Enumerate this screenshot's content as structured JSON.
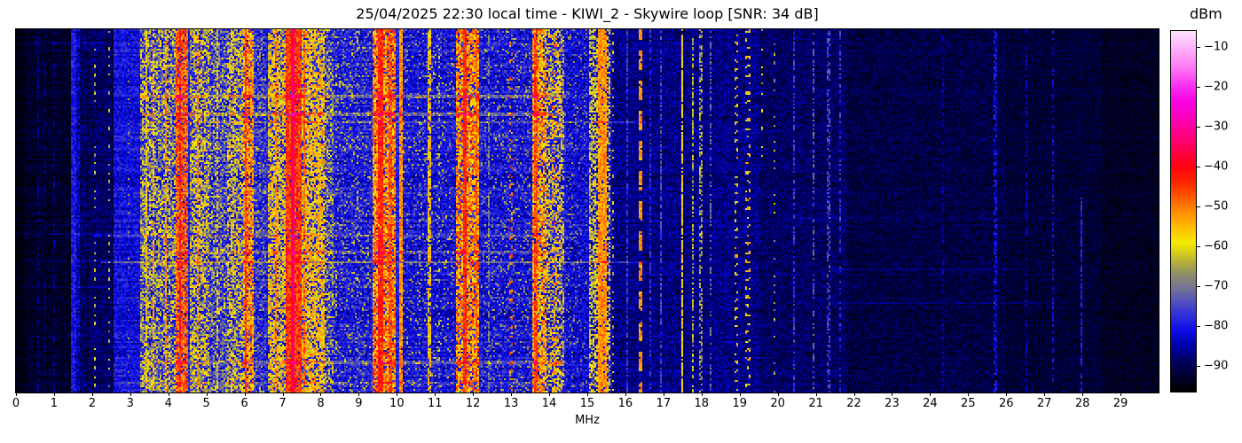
{
  "title": "25/04/2025 22:30 local time - KIWI_2 - Skywire loop [SNR: 34 dB]",
  "x_axis": {
    "label": "MHz",
    "ticks": [
      0,
      1,
      2,
      3,
      4,
      5,
      6,
      7,
      8,
      9,
      10,
      11,
      12,
      13,
      14,
      15,
      16,
      17,
      18,
      19,
      20,
      21,
      22,
      23,
      24,
      25,
      26,
      27,
      28,
      29
    ]
  },
  "colorbar": {
    "label": "dBm",
    "ticks": [
      {
        "v": -10,
        "label": "−10"
      },
      {
        "v": -20,
        "label": "−20"
      },
      {
        "v": -30,
        "label": "−30"
      },
      {
        "v": -40,
        "label": "−40"
      },
      {
        "v": -50,
        "label": "−50"
      },
      {
        "v": -60,
        "label": "−60"
      },
      {
        "v": -70,
        "label": "−70"
      },
      {
        "v": -80,
        "label": "−80"
      },
      {
        "v": -90,
        "label": "−90"
      }
    ]
  },
  "chart_data": {
    "type": "heatmap",
    "subtype": "hf-spectrogram-waterfall",
    "title": "25/04/2025 22:30 local time - KIWI_2 - Skywire loop [SNR: 34 dB]",
    "date_local": "25/04/2025",
    "time_local": "22:30",
    "receiver": "KIWI_2",
    "antenna": "Skywire loop",
    "snr_db": 34,
    "xlabel": "MHz",
    "x_range": [
      0,
      30
    ],
    "y_axis": "time (rows top to bottom, no tick labels shown)",
    "legend_position": "colorbar right",
    "grid": false,
    "color_scale": {
      "label": "dBm",
      "range": [
        -96.5,
        -6
      ],
      "ticks": [
        -10,
        -20,
        -30,
        -40,
        -50,
        -60,
        -70,
        -80,
        -90
      ],
      "stops": [
        [
          -97,
          "#000000"
        ],
        [
          -93,
          "#000028"
        ],
        [
          -89,
          "#00005e"
        ],
        [
          -85,
          "#0000a8"
        ],
        [
          -81,
          "#0d0de8"
        ],
        [
          -77,
          "#3232d8"
        ],
        [
          -73,
          "#5a5ab4"
        ],
        [
          -70,
          "#78788c"
        ],
        [
          -67,
          "#8f8f6a"
        ],
        [
          -64,
          "#b5ae3c"
        ],
        [
          -61,
          "#e0d414"
        ],
        [
          -59,
          "#f5e900"
        ],
        [
          -56,
          "#ffc400"
        ],
        [
          -52,
          "#ff9300"
        ],
        [
          -48,
          "#ff5d00"
        ],
        [
          -44,
          "#ff2600"
        ],
        [
          -40,
          "#ff0011"
        ],
        [
          -36,
          "#ff004d"
        ],
        [
          -32,
          "#ff0084"
        ],
        [
          -28,
          "#fb00b8"
        ],
        [
          -24,
          "#f900e2"
        ],
        [
          -20,
          "#fb2bee"
        ],
        [
          -15,
          "#fd7df5"
        ],
        [
          -10,
          "#feb5fa"
        ],
        [
          -6,
          "#ffe3fd"
        ]
      ]
    },
    "background_profile_fields": "[fMHz_start, fMHz_end, base_dBm, noise_dB]",
    "background_profile": [
      [
        0,
        0.25,
        -95,
        2
      ],
      [
        0.25,
        1.44,
        -93,
        3
      ],
      [
        1.44,
        1.62,
        -84,
        4
      ],
      [
        1.62,
        2.55,
        -89,
        4
      ],
      [
        2.55,
        3.25,
        -81,
        4
      ],
      [
        3.25,
        8.35,
        -79,
        5
      ],
      [
        8.35,
        9.3,
        -80,
        5
      ],
      [
        9.3,
        10.05,
        -79,
        5
      ],
      [
        10.05,
        11.55,
        -81,
        5
      ],
      [
        11.55,
        12.2,
        -79,
        5
      ],
      [
        12.2,
        13.5,
        -81,
        5
      ],
      [
        13.5,
        14.45,
        -80,
        5
      ],
      [
        14.45,
        15.65,
        -82,
        5
      ],
      [
        15.65,
        19.5,
        -87,
        4
      ],
      [
        19.5,
        21.8,
        -89,
        4
      ],
      [
        21.8,
        26,
        -91,
        3.5
      ],
      [
        26,
        28.5,
        -92,
        3
      ],
      [
        28.5,
        30,
        -93.5,
        2.5
      ]
    ],
    "band_fields": "f:[MHz span], lvl:peak dBm, jit:+-dB, p:pixel density, g:s solid|o dotted|d dashed|k dark-gap, t:[row fraction span]",
    "signal_bands": [
      {
        "f": [
          0.55,
          0.6
        ],
        "lvl": -86,
        "jit": 3,
        "p": 0.5,
        "g": "s"
      },
      {
        "f": [
          0.75,
          0.79
        ],
        "lvl": -87,
        "jit": 3,
        "p": 0.4,
        "g": "s"
      },
      {
        "f": [
          0.98,
          1.02
        ],
        "lvl": -86,
        "jit": 3,
        "p": 0.4,
        "g": "s"
      },
      {
        "f": [
          1.24,
          1.28
        ],
        "lvl": -87,
        "jit": 3,
        "p": 0.4,
        "g": "s"
      },
      {
        "f": [
          1.44,
          1.58
        ],
        "lvl": -80,
        "jit": 4,
        "p": 0.9,
        "g": "s"
      },
      {
        "f": [
          1.64,
          1.7
        ],
        "lvl": -83,
        "jit": 4,
        "p": 0.7,
        "g": "s"
      },
      {
        "f": [
          1.86,
          1.9
        ],
        "lvl": -93,
        "jit": 2,
        "p": 0.8,
        "g": "k"
      },
      {
        "f": [
          2.03,
          2.08
        ],
        "lvl": -64,
        "jit": 5,
        "p": 0.5,
        "g": "o"
      },
      {
        "f": [
          2.43,
          2.48
        ],
        "lvl": -66,
        "jit": 5,
        "p": 0.4,
        "g": "o"
      },
      {
        "f": [
          2.52,
          2.56
        ],
        "lvl": -92,
        "jit": 2,
        "p": 0.9,
        "g": "k"
      },
      {
        "f": [
          2.95,
          3.0
        ],
        "lvl": -68,
        "jit": 6,
        "p": 0.3,
        "g": "o"
      },
      {
        "f": [
          3.25,
          4.18
        ],
        "lvl": -64,
        "jit": 8,
        "p": 0.55,
        "g": "s"
      },
      {
        "f": [
          3.38,
          3.43
        ],
        "lvl": -58,
        "jit": 6,
        "p": 0.7,
        "g": "s"
      },
      {
        "f": [
          3.6,
          3.65
        ],
        "lvl": -55,
        "jit": 6,
        "p": 0.6,
        "g": "s"
      },
      {
        "f": [
          3.9,
          3.95
        ],
        "lvl": -52,
        "jit": 6,
        "p": 0.7,
        "g": "s"
      },
      {
        "f": [
          4.2,
          4.5
        ],
        "lvl": -48,
        "jit": 7,
        "p": 0.85,
        "g": "s"
      },
      {
        "f": [
          4.28,
          4.34
        ],
        "lvl": -42,
        "jit": 5,
        "p": 0.9,
        "g": "s"
      },
      {
        "f": [
          4.55,
          5.1
        ],
        "lvl": -62,
        "jit": 8,
        "p": 0.6,
        "g": "s"
      },
      {
        "f": [
          4.75,
          4.8
        ],
        "lvl": -52,
        "jit": 6,
        "p": 0.7,
        "g": "s"
      },
      {
        "f": [
          5.1,
          5.55
        ],
        "lvl": -67,
        "jit": 8,
        "p": 0.45,
        "g": "s"
      },
      {
        "f": [
          5.28,
          5.33
        ],
        "lvl": -58,
        "jit": 6,
        "p": 0.5,
        "g": "s"
      },
      {
        "f": [
          5.55,
          5.95
        ],
        "lvl": -61,
        "jit": 8,
        "p": 0.6,
        "g": "s"
      },
      {
        "f": [
          5.95,
          6.25
        ],
        "lvl": -52,
        "jit": 8,
        "p": 0.8,
        "g": "s"
      },
      {
        "f": [
          6.0,
          6.06
        ],
        "lvl": -45,
        "jit": 5,
        "p": 0.9,
        "g": "s"
      },
      {
        "f": [
          6.25,
          6.58
        ],
        "lvl": -70,
        "jit": 8,
        "p": 0.35,
        "g": "s"
      },
      {
        "f": [
          6.6,
          7.1
        ],
        "lvl": -59,
        "jit": 8,
        "p": 0.7,
        "g": "s"
      },
      {
        "f": [
          6.78,
          6.84
        ],
        "lvl": -50,
        "jit": 6,
        "p": 0.8,
        "g": "s"
      },
      {
        "f": [
          7.1,
          7.48
        ],
        "lvl": -45,
        "jit": 6,
        "p": 0.95,
        "g": "s"
      },
      {
        "f": [
          7.24,
          7.33
        ],
        "lvl": -35,
        "jit": 4,
        "p": 1,
        "g": "s"
      },
      {
        "f": [
          7.48,
          8.1
        ],
        "lvl": -57,
        "jit": 8,
        "p": 0.75,
        "g": "s"
      },
      {
        "f": [
          7.56,
          7.61
        ],
        "lvl": -48,
        "jit": 5,
        "p": 0.8,
        "g": "s"
      },
      {
        "f": [
          8.1,
          8.34
        ],
        "lvl": -65,
        "jit": 8,
        "p": 0.5,
        "g": "s"
      },
      {
        "f": [
          8.35,
          9.3
        ],
        "lvl": -67,
        "jit": 6,
        "p": 0.15,
        "g": "s"
      },
      {
        "f": [
          8.4,
          8.45
        ],
        "lvl": -64,
        "jit": 6,
        "p": 0.35,
        "g": "o"
      },
      {
        "f": [
          8.95,
          9.0
        ],
        "lvl": -62,
        "jit": 6,
        "p": 0.4,
        "g": "o"
      },
      {
        "f": [
          9.35,
          9.95
        ],
        "lvl": -51,
        "jit": 9,
        "p": 0.85,
        "g": "s"
      },
      {
        "f": [
          9.5,
          9.62
        ],
        "lvl": -43,
        "jit": 5,
        "p": 0.95,
        "g": "s"
      },
      {
        "f": [
          9.8,
          9.86
        ],
        "lvl": -47,
        "jit": 5,
        "p": 0.8,
        "g": "s"
      },
      {
        "f": [
          10.08,
          10.14
        ],
        "lvl": -52,
        "jit": 5,
        "p": 0.95,
        "g": "s"
      },
      {
        "f": [
          10.05,
          11.52
        ],
        "lvl": -67,
        "jit": 7,
        "p": 0.1,
        "g": "s"
      },
      {
        "f": [
          10.58,
          10.63
        ],
        "lvl": -64,
        "jit": 6,
        "p": 0.4,
        "g": "o"
      },
      {
        "f": [
          10.83,
          10.88
        ],
        "lvl": -57,
        "jit": 6,
        "p": 0.7,
        "g": "s"
      },
      {
        "f": [
          11.1,
          11.15
        ],
        "lvl": -64,
        "jit": 6,
        "p": 0.5,
        "g": "o"
      },
      {
        "f": [
          11.55,
          12.18
        ],
        "lvl": -52,
        "jit": 9,
        "p": 0.8,
        "g": "s"
      },
      {
        "f": [
          11.72,
          11.85
        ],
        "lvl": -44,
        "jit": 5,
        "p": 0.95,
        "g": "s"
      },
      {
        "f": [
          12.05,
          12.1
        ],
        "lvl": -49,
        "jit": 5,
        "p": 0.8,
        "g": "s"
      },
      {
        "f": [
          12.2,
          13.5
        ],
        "lvl": -68,
        "jit": 6,
        "p": 0.12,
        "g": "s"
      },
      {
        "f": [
          12.4,
          12.45
        ],
        "lvl": -70,
        "jit": 5,
        "p": 0.6,
        "g": "s"
      },
      {
        "f": [
          12.95,
          13.06
        ],
        "lvl": -49,
        "jit": 6,
        "p": 0.5,
        "g": "o"
      },
      {
        "f": [
          13.55,
          13.92
        ],
        "lvl": -54,
        "jit": 9,
        "p": 0.8,
        "g": "s"
      },
      {
        "f": [
          13.62,
          13.68
        ],
        "lvl": -46,
        "jit": 5,
        "p": 0.85,
        "g": "s"
      },
      {
        "f": [
          13.95,
          14.4
        ],
        "lvl": -61,
        "jit": 9,
        "p": 0.5,
        "g": "s"
      },
      {
        "f": [
          14.05,
          14.2
        ],
        "lvl": -50,
        "jit": 6,
        "p": 0.3,
        "g": "o"
      },
      {
        "f": [
          14.45,
          15.02
        ],
        "lvl": -70,
        "jit": 6,
        "p": 0.12,
        "g": "s"
      },
      {
        "f": [
          15.05,
          15.26
        ],
        "lvl": -62,
        "jit": 6,
        "p": 0.6,
        "g": "s"
      },
      {
        "f": [
          15.28,
          15.52
        ],
        "lvl": -52,
        "jit": 5,
        "p": 0.95,
        "g": "s"
      },
      {
        "f": [
          15.52,
          15.62
        ],
        "lvl": -60,
        "jit": 6,
        "p": 0.55,
        "g": "s"
      },
      {
        "f": [
          15.63,
          15.68
        ],
        "lvl": -62,
        "jit": 5,
        "p": 0.5,
        "g": "o"
      },
      {
        "f": [
          16.03,
          16.08
        ],
        "lvl": -77,
        "jit": 4,
        "p": 0.7,
        "g": "s"
      },
      {
        "f": [
          16.33,
          16.44
        ],
        "lvl": -52,
        "jit": 4,
        "p": 0.92,
        "g": "d"
      },
      {
        "f": [
          16.62,
          16.68
        ],
        "lvl": -78,
        "jit": 4,
        "p": 0.6,
        "g": "s"
      },
      {
        "f": [
          16.9,
          16.95
        ],
        "lvl": -75,
        "jit": 4,
        "p": 0.6,
        "g": "s"
      },
      {
        "f": [
          17.46,
          17.52
        ],
        "lvl": -58,
        "jit": 5,
        "p": 0.9,
        "g": "s"
      },
      {
        "f": [
          17.75,
          17.81
        ],
        "lvl": -64,
        "jit": 6,
        "p": 0.55,
        "g": "s"
      },
      {
        "f": [
          17.95,
          18.01
        ],
        "lvl": -66,
        "jit": 6,
        "p": 0.5,
        "g": "s"
      },
      {
        "f": [
          18.22,
          18.27
        ],
        "lvl": -72,
        "jit": 5,
        "p": 0.4,
        "g": "s"
      },
      {
        "f": [
          18.85,
          18.95
        ],
        "lvl": -58,
        "jit": 7,
        "p": 0.45,
        "g": "o"
      },
      {
        "f": [
          19.15,
          19.28
        ],
        "lvl": -58,
        "jit": 7,
        "p": 0.5,
        "g": "o"
      },
      {
        "f": [
          19.55,
          19.62
        ],
        "lvl": -62,
        "jit": 6,
        "p": 0.35,
        "g": "o",
        "t": [
          0,
          0.35
        ]
      },
      {
        "f": [
          19.9,
          19.96
        ],
        "lvl": -66,
        "jit": 6,
        "p": 0.3,
        "g": "o"
      },
      {
        "f": [
          20.4,
          20.46
        ],
        "lvl": -77,
        "jit": 4,
        "p": 0.6,
        "g": "s"
      },
      {
        "f": [
          20.9,
          20.96
        ],
        "lvl": -73,
        "jit": 5,
        "p": 0.5,
        "g": "s"
      },
      {
        "f": [
          21.3,
          21.36
        ],
        "lvl": -75,
        "jit": 4,
        "p": 0.5,
        "g": "s"
      },
      {
        "f": [
          21.6,
          21.66
        ],
        "lvl": -77,
        "jit": 4,
        "p": 0.4,
        "g": "s"
      },
      {
        "f": [
          24.3,
          24.36
        ],
        "lvl": -85,
        "jit": 3,
        "p": 0.4,
        "g": "s"
      },
      {
        "f": [
          25.68,
          25.75
        ],
        "lvl": -81,
        "jit": 4,
        "p": 0.6,
        "g": "s"
      },
      {
        "f": [
          26.5,
          26.57
        ],
        "lvl": -84,
        "jit": 3,
        "p": 0.45,
        "g": "s"
      },
      {
        "f": [
          27.2,
          27.27
        ],
        "lvl": -82,
        "jit": 4,
        "p": 0.55,
        "g": "s"
      },
      {
        "f": [
          27.96,
          28.01
        ],
        "lvl": -79,
        "jit": 3,
        "p": 0.8,
        "g": "s",
        "t": [
          0.45,
          1
        ]
      }
    ],
    "streak_fields": "[row_px(0-410), height_px, fMHz_start, fMHz_end, boost_dB]",
    "horizontal_streaks": [
      [
        62,
        2,
        3.3,
        9.0,
        5
      ],
      [
        73,
        3,
        3.3,
        14.4,
        8
      ],
      [
        94,
        3,
        3.3,
        14.4,
        9
      ],
      [
        103,
        2,
        3.3,
        16.5,
        7
      ],
      [
        232,
        2,
        2.0,
        14.4,
        7
      ],
      [
        250,
        3,
        3.3,
        14.4,
        6
      ],
      [
        262,
        2,
        2.2,
        16.5,
        8
      ],
      [
        373,
        3,
        3.3,
        14.4,
        6
      ],
      [
        398,
        2,
        2.5,
        13.5,
        5
      ],
      [
        13,
        2,
        0.2,
        2.5,
        3
      ],
      [
        230,
        2,
        0.1,
        2.5,
        3
      ],
      [
        260,
        2,
        0.1,
        2.5,
        3
      ],
      [
        289,
        2,
        0.1,
        2.5,
        3
      ],
      [
        212,
        2,
        20.5,
        27.5,
        3
      ],
      [
        270,
        2,
        21.5,
        26.5,
        3
      ],
      [
        308,
        2,
        21.5,
        27.0,
        3
      ]
    ]
  }
}
